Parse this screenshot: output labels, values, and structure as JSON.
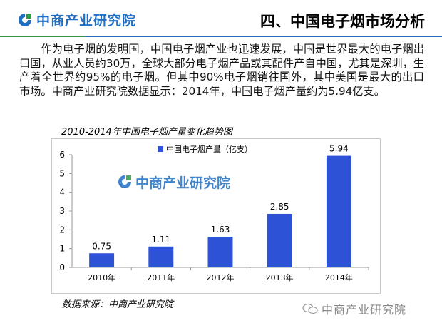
{
  "header": {
    "logo_text": "中商产业研究院",
    "section_title": "四、中国电子烟市场分析"
  },
  "body": {
    "paragraph": "作为电子烟的发明国，中国电子烟产业也迅速发展，中国是世界最大的电子烟出口国，从业人员约30万，全球大部分电子烟产品或其配件产自中国，尤其是深圳，生产着全世界约95%的电子烟。但其中90%电子烟销往国外，其中美国是最大的出口市场。中商产业研究院数据显示：2014年，中国电子烟产量约为5.94亿支。"
  },
  "chart_data": {
    "type": "bar",
    "title": "2010-2014年中国电子烟产量变化趋势图",
    "categories": [
      "2010年",
      "2011年",
      "2012年",
      "2013年",
      "2014年"
    ],
    "series": [
      {
        "name": "中国电子烟产量（亿支）",
        "values": [
          0.75,
          1.11,
          1.63,
          2.85,
          5.94
        ]
      }
    ],
    "data_labels": [
      "0.75",
      "1.11",
      "1.63",
      "2.85",
      "5.94"
    ],
    "ylim": [
      0,
      6
    ],
    "yticks": [
      0,
      1,
      2,
      3,
      4,
      5,
      6
    ],
    "grid": false,
    "legend_position": "top-center",
    "bar_color": "#2d52d6",
    "watermark": "中商产业研究院"
  },
  "footer": {
    "source": "数据来源：中商产业研究院",
    "wechat_watermark": "中商产业研究院"
  },
  "colors": {
    "brand_blue": "#1f6fc4",
    "brand_green": "#2e9a48",
    "bar": "#2d52d6"
  }
}
